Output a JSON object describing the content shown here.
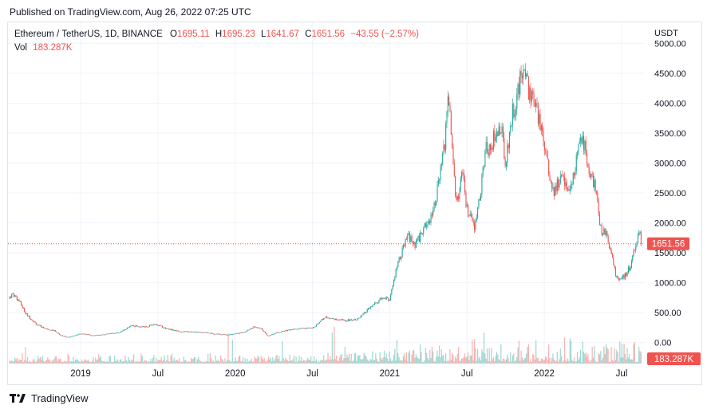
{
  "header": {
    "published": "Published on TradingView.com, Aug 26, 2022 07:25 UTC"
  },
  "legend": {
    "symbol": "Ethereum / TetherUS, 1D, BINANCE",
    "open_label": "O",
    "open": "1695.11",
    "high_label": "H",
    "high": "1695.23",
    "low_label": "L",
    "low": "1641.67",
    "close_label": "C",
    "close": "1651.56",
    "change": "−43.55 (−2.57%)",
    "vol_label": "Vol",
    "vol": "183.287K"
  },
  "footer": {
    "brand": "TradingView"
  },
  "colors": {
    "up": "#26a69a",
    "down": "#ef5350",
    "grid": "#f0f3fa",
    "text": "#131722"
  },
  "chart_data": {
    "type": "candlestick",
    "title": "Ethereum / TetherUS, 1D, BINANCE",
    "currency": "USDT",
    "ylim": [
      -350,
      5350
    ],
    "y_ticks": [
      0,
      500,
      1000,
      1500,
      2000,
      2500,
      3000,
      3500,
      4000,
      4500,
      5000
    ],
    "y_tick_labels": [
      "0.00",
      "500.00",
      "1000.00",
      "1500.00",
      "2000.00",
      "2500.00",
      "3000.00",
      "3500.00",
      "4000.00",
      "4500.00",
      "5000.00"
    ],
    "x_range": [
      2018.53,
      2022.65
    ],
    "x_ticks": [
      {
        "t": 2019.0,
        "label": "2019"
      },
      {
        "t": 2019.5,
        "label": "Jul"
      },
      {
        "t": 2020.0,
        "label": "2020"
      },
      {
        "t": 2020.5,
        "label": "Jul"
      },
      {
        "t": 2021.0,
        "label": "2021"
      },
      {
        "t": 2021.5,
        "label": "Jul"
      },
      {
        "t": 2022.0,
        "label": "2022"
      },
      {
        "t": 2022.5,
        "label": "Jul"
      }
    ],
    "last_price": 1651.56,
    "last_price_label": "1651.56",
    "last_volume_label": "183.287K",
    "price_series": [
      [
        2018.53,
        730
      ],
      [
        2018.56,
        820
      ],
      [
        2018.6,
        700
      ],
      [
        2018.65,
        470
      ],
      [
        2018.72,
        290
      ],
      [
        2018.78,
        230
      ],
      [
        2018.83,
        200
      ],
      [
        2018.87,
        120
      ],
      [
        2018.92,
        90
      ],
      [
        2019.0,
        150
      ],
      [
        2019.08,
        120
      ],
      [
        2019.16,
        140
      ],
      [
        2019.25,
        170
      ],
      [
        2019.33,
        280
      ],
      [
        2019.42,
        260
      ],
      [
        2019.48,
        310
      ],
      [
        2019.55,
        240
      ],
      [
        2019.63,
        190
      ],
      [
        2019.7,
        180
      ],
      [
        2019.78,
        175
      ],
      [
        2019.86,
        150
      ],
      [
        2019.95,
        130
      ],
      [
        2020.05,
        170
      ],
      [
        2020.12,
        260
      ],
      [
        2020.17,
        230
      ],
      [
        2020.21,
        110
      ],
      [
        2020.27,
        170
      ],
      [
        2020.35,
        210
      ],
      [
        2020.42,
        240
      ],
      [
        2020.5,
        240
      ],
      [
        2020.58,
        430
      ],
      [
        2020.65,
        390
      ],
      [
        2020.72,
        370
      ],
      [
        2020.8,
        400
      ],
      [
        2020.88,
        600
      ],
      [
        2020.95,
        740
      ],
      [
        2021.0,
        730
      ],
      [
        2021.05,
        1300
      ],
      [
        2021.12,
        1800
      ],
      [
        2021.16,
        1600
      ],
      [
        2021.22,
        1900
      ],
      [
        2021.28,
        2200
      ],
      [
        2021.32,
        2700
      ],
      [
        2021.36,
        3400
      ],
      [
        2021.38,
        4200
      ],
      [
        2021.4,
        3500
      ],
      [
        2021.43,
        2300
      ],
      [
        2021.47,
        2800
      ],
      [
        2021.5,
        2200
      ],
      [
        2021.55,
        1900
      ],
      [
        2021.58,
        2400
      ],
      [
        2021.62,
        3200
      ],
      [
        2021.67,
        3400
      ],
      [
        2021.72,
        3600
      ],
      [
        2021.75,
        3000
      ],
      [
        2021.79,
        3800
      ],
      [
        2021.84,
        4300
      ],
      [
        2021.87,
        4700
      ],
      [
        2021.9,
        4200
      ],
      [
        2021.93,
        4000
      ],
      [
        2021.97,
        3700
      ],
      [
        2022.02,
        3100
      ],
      [
        2022.05,
        2500
      ],
      [
        2022.08,
        2600
      ],
      [
        2022.12,
        2800
      ],
      [
        2022.17,
        2500
      ],
      [
        2022.22,
        3200
      ],
      [
        2022.25,
        3400
      ],
      [
        2022.29,
        2900
      ],
      [
        2022.33,
        2600
      ],
      [
        2022.36,
        1900
      ],
      [
        2022.4,
        1800
      ],
      [
        2022.44,
        1400
      ],
      [
        2022.47,
        1050
      ],
      [
        2022.52,
        1100
      ],
      [
        2022.56,
        1300
      ],
      [
        2022.6,
        1700
      ],
      [
        2022.62,
        1900
      ],
      [
        2022.65,
        1651.56
      ]
    ]
  }
}
